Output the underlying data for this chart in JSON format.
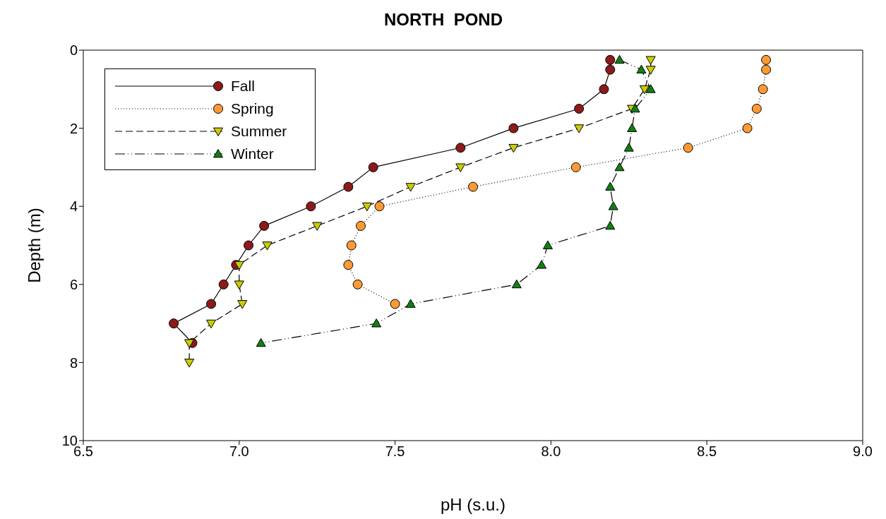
{
  "chart_data": {
    "type": "line",
    "title": "NORTH  POND",
    "xlabel": "pH (s.u.)",
    "ylabel": "Depth (m)",
    "xlim": [
      6.5,
      9.0
    ],
    "xticks": [
      {
        "value": 6.5,
        "label": "6.5"
      },
      {
        "value": 7.0,
        "label": "7.0"
      },
      {
        "value": 7.5,
        "label": "7.5"
      },
      {
        "value": 8.0,
        "label": "8.0"
      },
      {
        "value": 8.5,
        "label": "8.5"
      },
      {
        "value": 9.0,
        "label": "9.0"
      }
    ],
    "ylim": [
      10,
      0
    ],
    "yticks": [
      0,
      2,
      4,
      6,
      8,
      10
    ],
    "grid": false,
    "legend": "top left",
    "series": [
      {
        "name": "Fall",
        "color": "#8b1a1a",
        "marker": "circle",
        "line_style": "solid",
        "x": [
          8.19,
          8.19,
          8.17,
          8.09,
          7.88,
          7.71,
          7.43,
          7.35,
          7.23,
          7.08,
          7.03,
          6.99,
          6.95,
          6.91,
          6.79,
          6.85
        ],
        "values": [
          0.25,
          0.5,
          1,
          1.5,
          2,
          2.5,
          3,
          3.5,
          4,
          4.5,
          5,
          5.5,
          6,
          6.5,
          7,
          7.5
        ]
      },
      {
        "name": "Spring",
        "color": "#ff9933",
        "marker": "circle",
        "line_style": "dotted",
        "x": [
          8.69,
          8.69,
          8.68,
          8.66,
          8.63,
          8.44,
          8.08,
          7.75,
          7.45,
          7.39,
          7.36,
          7.35,
          7.38,
          7.5
        ],
        "values": [
          0.25,
          0.5,
          1,
          1.5,
          2,
          2.5,
          3,
          3.5,
          4,
          4.5,
          5,
          5.5,
          6,
          6.5
        ]
      },
      {
        "name": "Summer",
        "color": "#cccc00",
        "marker": "triangle_down",
        "line_style": "dashed",
        "x": [
          8.32,
          8.32,
          8.3,
          8.26,
          8.09,
          7.88,
          7.71,
          7.55,
          7.41,
          7.25,
          7.09,
          7.0,
          7.0,
          7.01,
          6.91,
          6.84,
          6.84
        ],
        "values": [
          0.25,
          0.5,
          1,
          1.5,
          2,
          2.5,
          3,
          3.5,
          4,
          4.5,
          5,
          5.5,
          6,
          6.5,
          7,
          7.5,
          8
        ]
      },
      {
        "name": "Winter",
        "color": "#108010",
        "marker": "triangle",
        "line_style": "dashdot",
        "x": [
          8.22,
          8.29,
          8.32,
          8.27,
          8.26,
          8.25,
          8.22,
          8.19,
          8.2,
          8.19,
          7.99,
          7.97,
          7.89,
          7.55,
          7.44,
          7.07
        ],
        "values": [
          0.25,
          0.5,
          1,
          1.5,
          2,
          2.5,
          3,
          3.5,
          4,
          4.5,
          5,
          5.5,
          6,
          6.5,
          7,
          7.5
        ]
      }
    ]
  }
}
